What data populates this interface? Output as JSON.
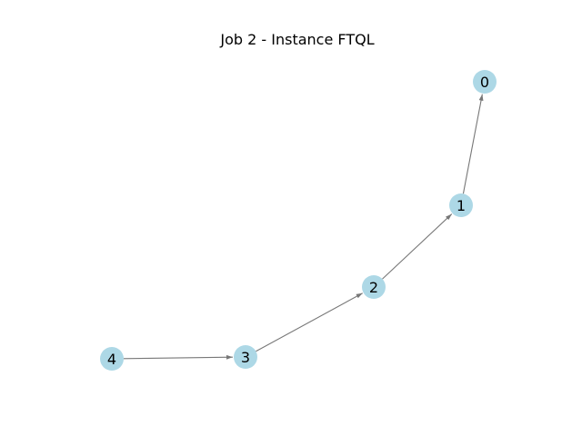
{
  "title": "Job 2 - Instance FTQL",
  "style": {
    "node_color": "#add8e6",
    "edge_color": "#777777"
  },
  "nodes": [
    {
      "id": "0",
      "label": "0"
    },
    {
      "id": "1",
      "label": "1"
    },
    {
      "id": "2",
      "label": "2"
    },
    {
      "id": "3",
      "label": "3"
    },
    {
      "id": "4",
      "label": "4"
    }
  ],
  "edges": [
    {
      "from": "4",
      "to": "3"
    },
    {
      "from": "3",
      "to": "2"
    },
    {
      "from": "2",
      "to": "1"
    },
    {
      "from": "1",
      "to": "0"
    }
  ]
}
